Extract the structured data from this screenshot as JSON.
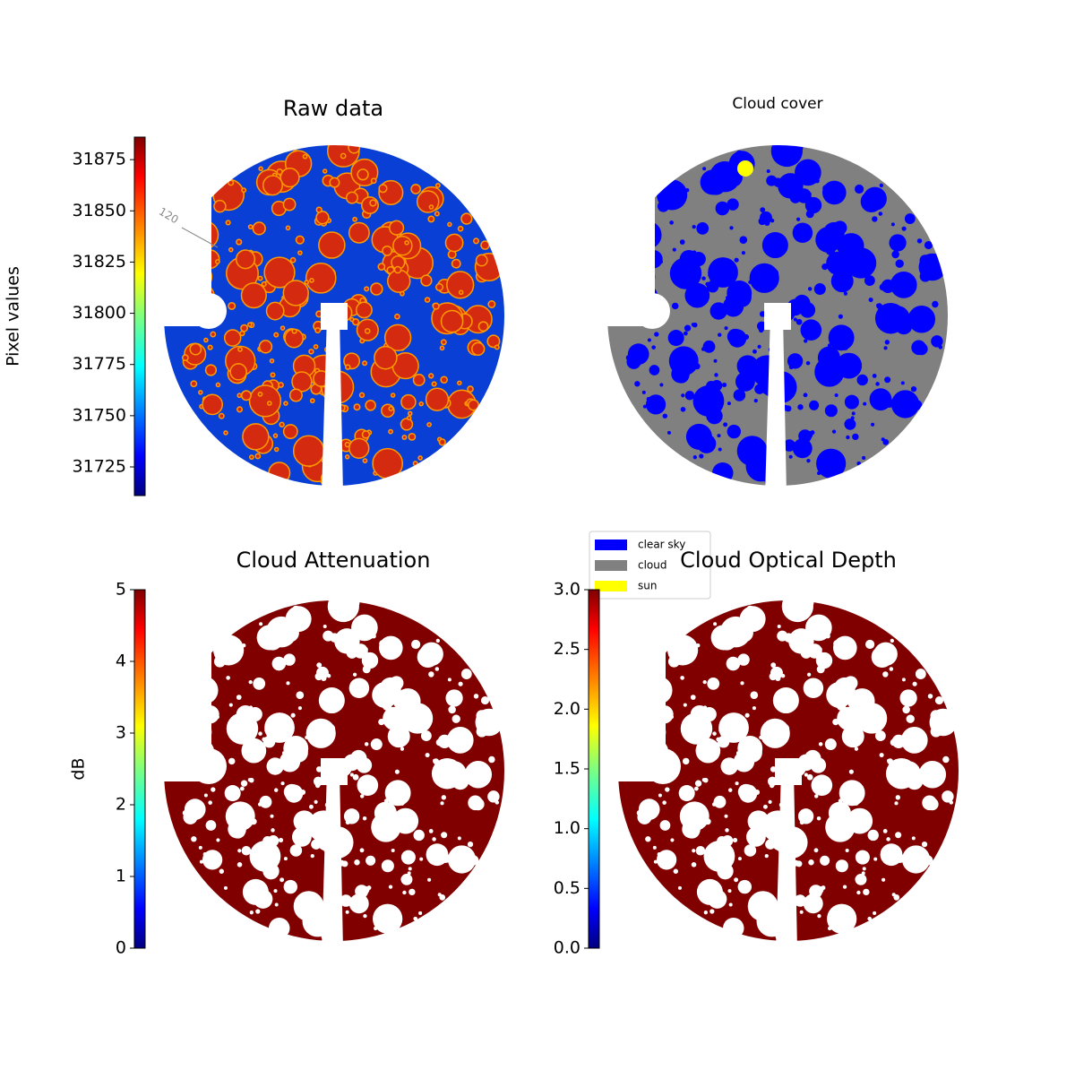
{
  "chart_data": [
    {
      "type": "image",
      "title": "Raw data",
      "colorbar_label": "Pixel values",
      "colormap": "jet",
      "ylim": [
        31711,
        31886
      ],
      "yticks": [
        31725,
        31750,
        31775,
        31800,
        31825,
        31850,
        31875
      ],
      "annotations": [
        "120"
      ]
    },
    {
      "type": "image",
      "title": "Cloud cover",
      "color": "#808080",
      "series": [
        {
          "name": "clear sky",
          "color": "#0000ff"
        },
        {
          "name": "cloud",
          "color": "#808080"
        },
        {
          "name": "sun",
          "color": "#ffff00"
        }
      ]
    },
    {
      "type": "image",
      "title": "Cloud Attenuation",
      "colorbar_label": "dB",
      "colormap": "jet",
      "color": "#800000",
      "ylim": [
        0,
        5
      ],
      "yticks": [
        0,
        1,
        2,
        3,
        4,
        5
      ]
    },
    {
      "type": "image",
      "title": "Cloud Optical Depth",
      "colormap": "jet",
      "color": "#800000",
      "ylim": [
        0,
        3
      ],
      "yticks": [
        {
          "value": 0,
          "label": "0.0"
        },
        {
          "value": 0.5,
          "label": "0.5"
        },
        {
          "value": 1,
          "label": "1.0"
        },
        {
          "value": 1.5,
          "label": "1.5"
        },
        {
          "value": 2,
          "label": "2.0"
        },
        {
          "value": 2.5,
          "label": "2.5"
        },
        {
          "value": 3,
          "label": "3.0"
        }
      ]
    }
  ]
}
